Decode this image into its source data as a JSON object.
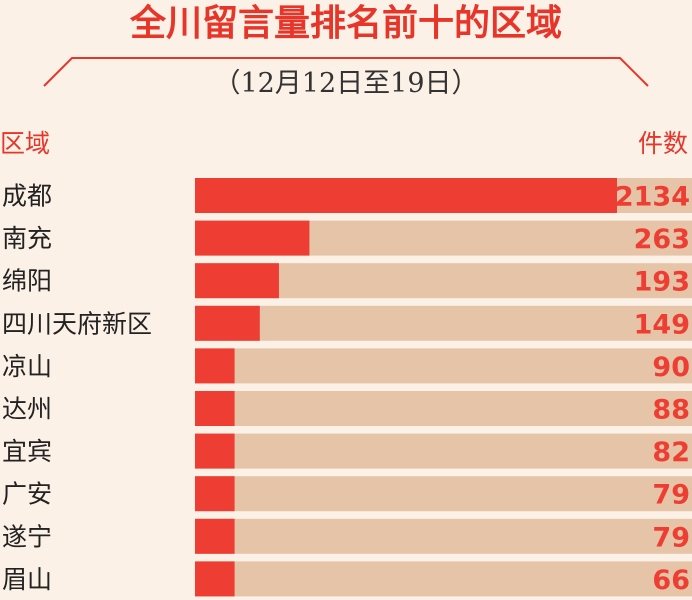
{
  "title": "全川留言量排名前十的区域",
  "subtitle": "（12月12日至19日）",
  "header": {
    "region_label": "区域",
    "count_label": "件数"
  },
  "colors": {
    "accent": "#e8352a",
    "bar_bg": "#e5c4a7",
    "bar_fill": "#ee3e33",
    "background": "#fbf1e7"
  },
  "chart_data": {
    "type": "bar",
    "orientation": "horizontal",
    "title": "全川留言量排名前十的区域",
    "subtitle": "（12月12日至19日）",
    "xlabel": "件数",
    "ylabel": "区域",
    "categories": [
      "成都",
      "南充",
      "绵阳",
      "四川天府新区",
      "凉山",
      "达州",
      "宜宾",
      "广安",
      "遂宁",
      "眉山"
    ],
    "values": [
      2134,
      263,
      193,
      149,
      90,
      88,
      82,
      79,
      79,
      66
    ],
    "xlim": [
      0,
      2134
    ],
    "grid": false
  }
}
